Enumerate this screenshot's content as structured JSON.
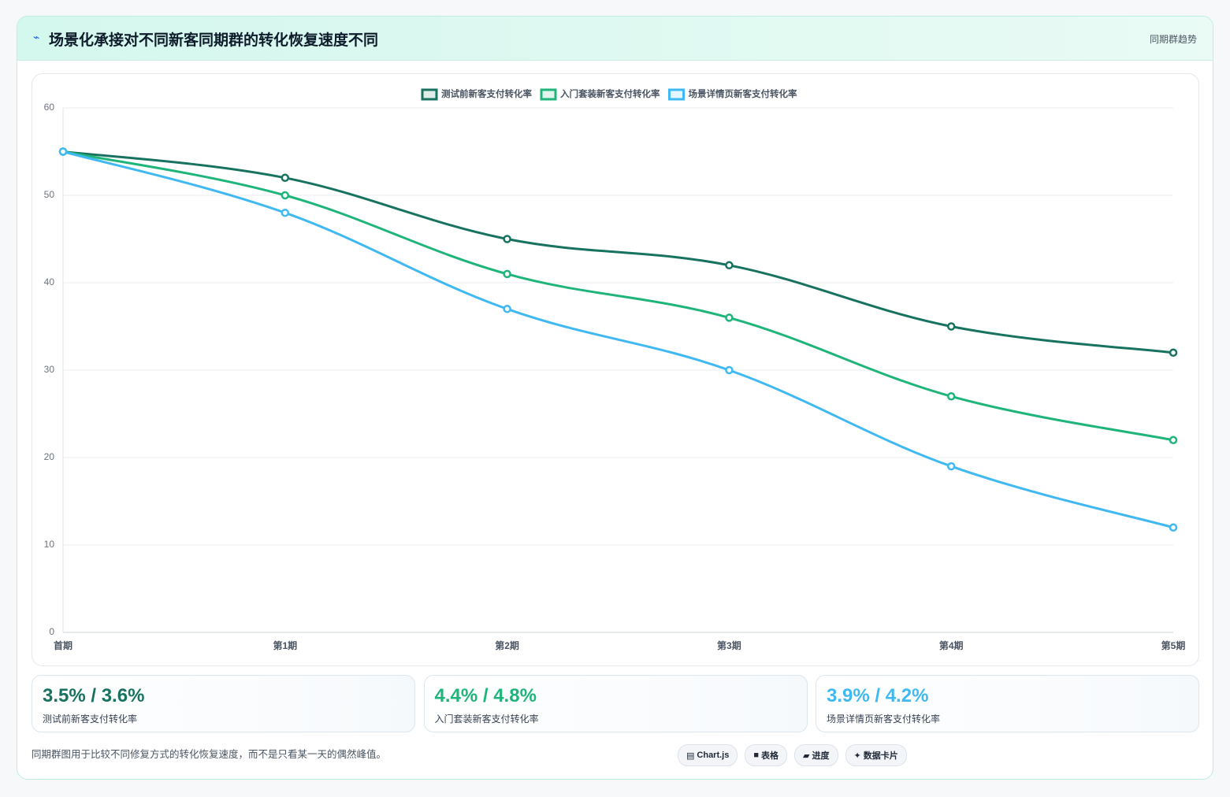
{
  "header": {
    "title": "场景化承接对不同新客同期群的转化恢复速度不同",
    "tag": "同期群趋势"
  },
  "chart_data": {
    "type": "line",
    "categories": [
      "首期",
      "第1期",
      "第2期",
      "第3期",
      "第4期",
      "第5期"
    ],
    "series": [
      {
        "name": "测试前新客支付转化率",
        "color": "#17735f",
        "values": [
          55,
          52,
          45,
          42,
          35,
          32
        ]
      },
      {
        "name": "入门套装新客支付转化率",
        "color": "#1fb57a",
        "values": [
          55,
          50,
          41,
          36,
          27,
          22
        ]
      },
      {
        "name": "场景详情页新客支付转化率",
        "color": "#40b9f2",
        "values": [
          55,
          48,
          37,
          30,
          19,
          12
        ]
      }
    ],
    "ylim": [
      0,
      60
    ],
    "yticks": [
      0,
      10,
      20,
      30,
      40,
      50,
      60
    ],
    "grid": true,
    "legend": "top"
  },
  "cards": [
    {
      "value": "3.5% / 3.6%",
      "label": "测试前新客支付转化率",
      "color": "#17735f"
    },
    {
      "value": "4.4% / 4.8%",
      "label": "入门套装新客支付转化率",
      "color": "#1fb57a"
    },
    {
      "value": "3.9% / 4.2%",
      "label": "场景详情页新客支付转化率",
      "color": "#40b9f2"
    }
  ],
  "footnote": "同期群图用于比较不同修复方式的转化恢复速度，而不是只看某一天的偶然峰值。",
  "chips": [
    "Chart.js",
    "表格",
    "进度",
    "数据卡片"
  ]
}
